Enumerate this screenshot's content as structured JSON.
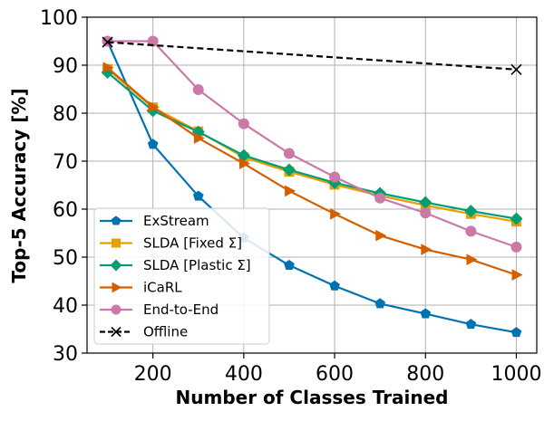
{
  "chart_data": {
    "type": "line",
    "title": "",
    "xlabel": "Number of Classes Trained",
    "ylabel": "Top-5 Accuracy [%]",
    "xlim": [
      55,
      1045
    ],
    "ylim": [
      30,
      100
    ],
    "xticks": [
      200,
      400,
      600,
      800,
      1000
    ],
    "xtick_labels": [
      "200",
      "400",
      "600",
      "800",
      "1000"
    ],
    "yticks": [
      30,
      40,
      50,
      60,
      70,
      80,
      90,
      100
    ],
    "ytick_labels": [
      "30",
      "40",
      "50",
      "60",
      "70",
      "80",
      "90",
      "100"
    ],
    "grid": true,
    "legend_position": "lower-left",
    "x": [
      100,
      200,
      300,
      400,
      500,
      600,
      700,
      800,
      900,
      1000
    ],
    "series": [
      {
        "name": "ExStream",
        "color": "#0072B2",
        "marker": "pentagon",
        "linestyle": "solid",
        "x": [
          100,
          200,
          300,
          400,
          500,
          600,
          700,
          800,
          900,
          1000
        ],
        "values": [
          95.0,
          73.5,
          62.7,
          54.0,
          48.3,
          44.0,
          40.3,
          38.2,
          36.0,
          34.3
        ]
      },
      {
        "name": "SLDA [Fixed Σ]",
        "color": "#E69F00",
        "marker": "square",
        "linestyle": "solid",
        "x": [
          100,
          200,
          300,
          400,
          500,
          600,
          700,
          800,
          900,
          1000
        ],
        "values": [
          89.2,
          81.2,
          76.2,
          70.8,
          67.8,
          65.1,
          62.8,
          60.8,
          59.0,
          57.4
        ]
      },
      {
        "name": "SLDA [Plastic Σ]",
        "color": "#009E73",
        "marker": "diamond",
        "linestyle": "solid",
        "x": [
          100,
          200,
          300,
          400,
          500,
          600,
          700,
          800,
          900,
          1000
        ],
        "values": [
          88.5,
          80.5,
          76.1,
          71.2,
          68.2,
          65.5,
          63.3,
          61.4,
          59.6,
          58.0
        ]
      },
      {
        "name": "iCaRL",
        "color": "#D55E00",
        "marker": "triangle-right",
        "linestyle": "solid",
        "x": [
          100,
          200,
          300,
          400,
          500,
          600,
          700,
          800,
          900,
          1000
        ],
        "values": [
          89.5,
          81.3,
          74.8,
          69.5,
          63.8,
          59.0,
          54.5,
          51.6,
          49.5,
          46.3
        ]
      },
      {
        "name": "End-to-End",
        "color": "#CC79A7",
        "marker": "circle",
        "linestyle": "solid",
        "x": [
          100,
          200,
          300,
          400,
          500,
          600,
          700,
          800,
          900,
          1000
        ],
        "values": [
          95.0,
          95.0,
          84.9,
          77.8,
          71.6,
          66.7,
          62.3,
          59.2,
          55.4,
          52.1
        ]
      },
      {
        "name": "Offline",
        "color": "#000000",
        "marker": "x",
        "linestyle": "dashed",
        "x": [
          100,
          1000
        ],
        "values": [
          94.8,
          89.1
        ]
      }
    ]
  }
}
